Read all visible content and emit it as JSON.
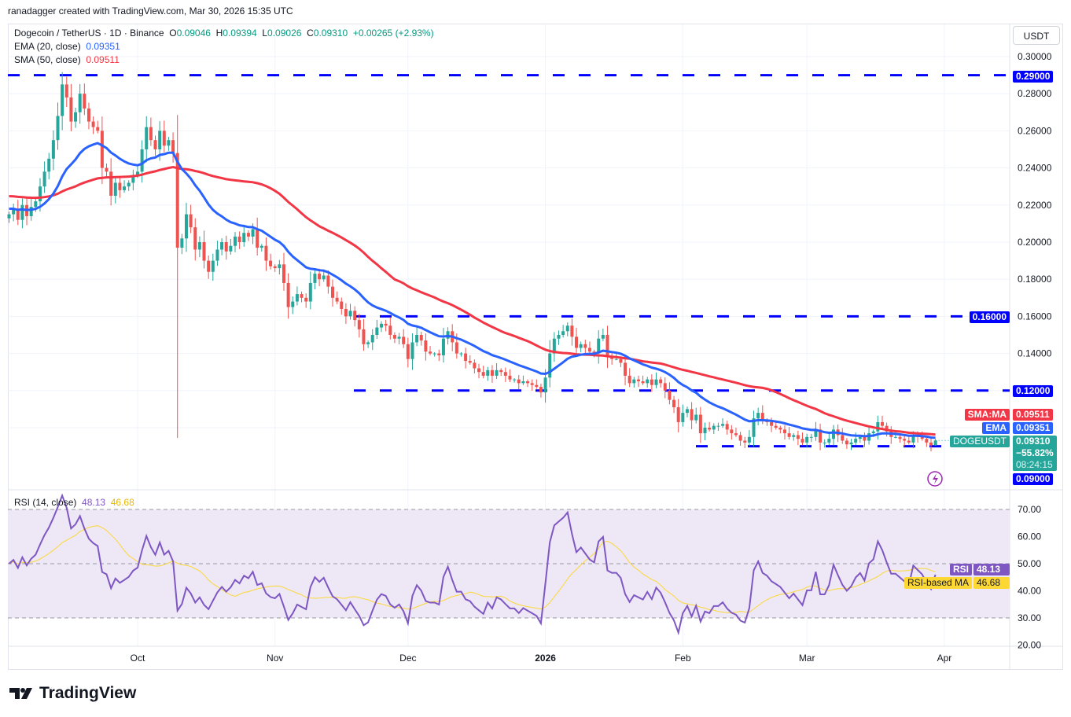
{
  "credit": "ranadagger created with TradingView.com, Mar 30, 2026 15:35 UTC",
  "legend": {
    "symbol": "Dogecoin / TetherUS · 1D · Binance",
    "o_label": "O",
    "o": "0.09046",
    "h_label": "H",
    "h": "0.09394",
    "l_label": "L",
    "l": "0.09026",
    "c_label": "C",
    "c": "0.09310",
    "change": "+0.00265 (+2.93%)",
    "ema_label": "EMA (20, close)",
    "ema": "0.09351",
    "sma_label": "SMA (50, close)",
    "sma": "0.09511",
    "rsi_label": "RSI (14, close)",
    "rsi": "48.13",
    "rsi_ma": "46.68"
  },
  "currency": "USDT",
  "colors": {
    "up": "#26a69a",
    "down": "#ef5350",
    "ema": "#2962ff",
    "sma": "#f23645",
    "level": "#0000ff",
    "rsi": "#7e57c2",
    "rsi_ma": "#fdd835",
    "rsi_band": "#ede7f6"
  },
  "badges": {
    "sma_name": "SMA:MA",
    "sma_val": "0.09511",
    "ema_name": "EMA",
    "ema_val": "0.09351",
    "sym_name": "DOGEUSDT",
    "price": "0.09310",
    "pct": "−55.82%",
    "countdown": "08:24:15",
    "rsi_name": "RSI",
    "rsi_val": "48.13",
    "rsima_name": "RSI-based MA",
    "rsima_val": "46.68"
  },
  "logo": "TradingView",
  "chart_data": {
    "type": "candlestick",
    "start_date": "2025-09-02",
    "end_date": "2026-03-30",
    "ylim": [
      0.085,
      0.305
    ],
    "price_ticks": [
      "0.30000",
      "0.28000",
      "0.26000",
      "0.24000",
      "0.22000",
      "0.20000",
      "0.18000",
      "0.16000",
      "0.14000"
    ],
    "levels": [
      {
        "value": 0.29,
        "label": "0.29000"
      },
      {
        "value": 0.16,
        "label": "0.16000"
      },
      {
        "value": 0.12,
        "label": "0.12000"
      },
      {
        "value": 0.09,
        "label": "0.09000"
      }
    ],
    "x_ticks": [
      {
        "date": "2025-10-01",
        "label": "Oct"
      },
      {
        "date": "2025-11-01",
        "label": "Nov"
      },
      {
        "date": "2025-12-01",
        "label": "Dec"
      },
      {
        "date": "2026-01-01",
        "label": "2026"
      },
      {
        "date": "2026-02-01",
        "label": "Feb"
      },
      {
        "date": "2026-03-01",
        "label": "Mar"
      },
      {
        "date": "2026-04-01",
        "label": "Apr"
      }
    ],
    "rsi_ticks": [
      "70.00",
      "60.00",
      "50.00",
      "40.00",
      "30.00",
      "20.00"
    ],
    "rsi_bands": [
      70,
      50,
      30
    ],
    "closes": [
      0.215,
      0.218,
      0.212,
      0.22,
      0.214,
      0.219,
      0.222,
      0.23,
      0.238,
      0.245,
      0.255,
      0.268,
      0.285,
      0.278,
      0.265,
      0.27,
      0.28,
      0.272,
      0.265,
      0.262,
      0.26,
      0.24,
      0.238,
      0.225,
      0.232,
      0.228,
      0.23,
      0.232,
      0.236,
      0.238,
      0.25,
      0.262,
      0.255,
      0.25,
      0.26,
      0.252,
      0.255,
      0.248,
      0.197,
      0.202,
      0.215,
      0.208,
      0.196,
      0.2,
      0.19,
      0.184,
      0.19,
      0.196,
      0.2,
      0.195,
      0.198,
      0.203,
      0.2,
      0.205,
      0.203,
      0.207,
      0.197,
      0.198,
      0.19,
      0.187,
      0.186,
      0.188,
      0.178,
      0.165,
      0.168,
      0.172,
      0.17,
      0.168,
      0.178,
      0.183,
      0.18,
      0.182,
      0.176,
      0.17,
      0.168,
      0.164,
      0.16,
      0.163,
      0.158,
      0.153,
      0.145,
      0.146,
      0.15,
      0.154,
      0.156,
      0.155,
      0.15,
      0.148,
      0.149,
      0.145,
      0.137,
      0.146,
      0.15,
      0.147,
      0.141,
      0.14,
      0.14,
      0.139,
      0.148,
      0.152,
      0.146,
      0.14,
      0.14,
      0.136,
      0.135,
      0.132,
      0.13,
      0.128,
      0.131,
      0.128,
      0.131,
      0.13,
      0.128,
      0.126,
      0.126,
      0.124,
      0.125,
      0.124,
      0.123,
      0.122,
      0.119,
      0.127,
      0.14,
      0.148,
      0.15,
      0.152,
      0.155,
      0.149,
      0.143,
      0.145,
      0.143,
      0.141,
      0.14,
      0.148,
      0.15,
      0.138,
      0.137,
      0.137,
      0.135,
      0.128,
      0.124,
      0.126,
      0.125,
      0.124,
      0.126,
      0.123,
      0.126,
      0.124,
      0.12,
      0.115,
      0.111,
      0.103,
      0.108,
      0.11,
      0.104,
      0.107,
      0.097,
      0.1,
      0.099,
      0.101,
      0.101,
      0.102,
      0.099,
      0.097,
      0.096,
      0.093,
      0.092,
      0.095,
      0.105,
      0.108,
      0.104,
      0.103,
      0.101,
      0.1,
      0.099,
      0.097,
      0.095,
      0.096,
      0.094,
      0.092,
      0.095,
      0.095,
      0.099,
      0.092,
      0.092,
      0.094,
      0.099,
      0.096,
      0.093,
      0.091,
      0.092,
      0.094,
      0.095,
      0.093,
      0.097,
      0.098,
      0.103,
      0.101,
      0.098,
      0.095,
      0.095,
      0.094,
      0.093,
      0.092,
      0.096,
      0.095,
      0.094,
      0.092,
      0.09046,
      0.0931
    ],
    "last_candle": {
      "open": 0.09046,
      "high": 0.09394,
      "low": 0.09026,
      "close": 0.0931
    },
    "crash_wick_low": 0.0945
  }
}
